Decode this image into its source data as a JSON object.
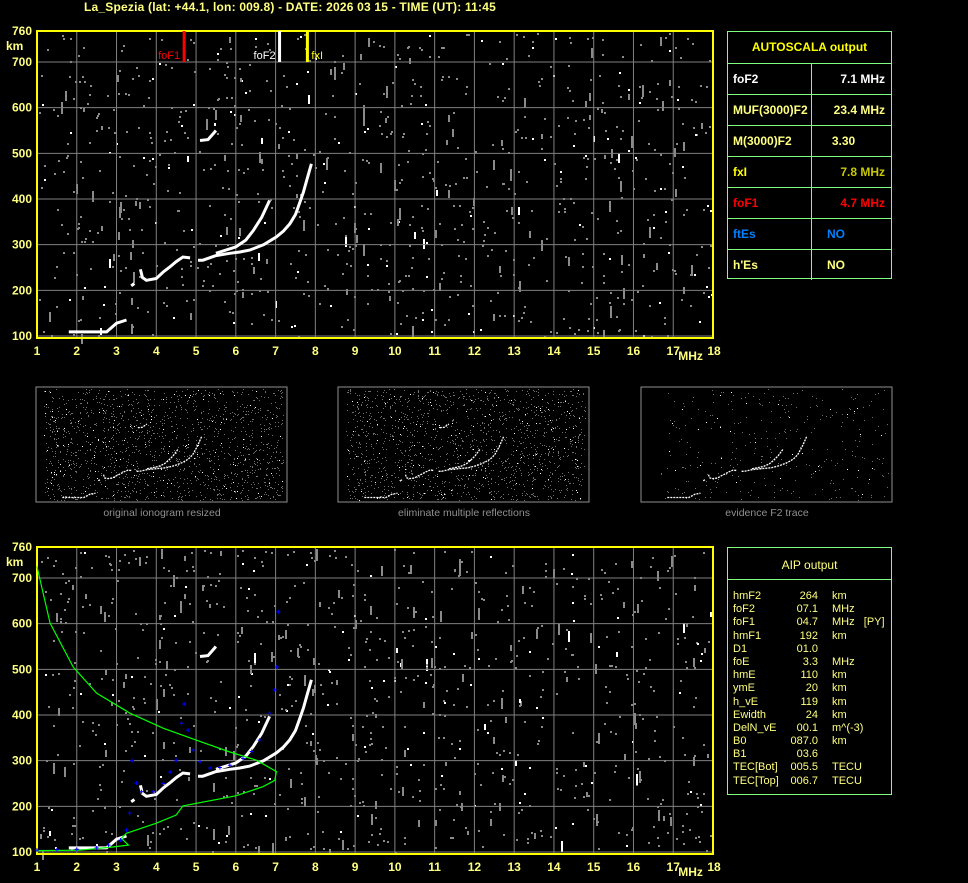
{
  "title": "La_Spezia (lat: +44.1, lon: 009.8) - DATE: 2026 03 15 - TIME (UT): 11:45",
  "autoscala": {
    "header": "AUTOSCALA output",
    "rows": [
      {
        "label": "foF2",
        "value": "7.1 MHz",
        "color": "#ffffff",
        "label_color": "#ffffff",
        "align": "right"
      },
      {
        "label": "MUF(3000)F2",
        "value": "23.4 MHz",
        "color": "#ffff80",
        "label_color": "#ffff80",
        "align": "right"
      },
      {
        "label": "M(3000)F2",
        "value": "3.30",
        "color": "#ffff80",
        "label_color": "#ffff80",
        "align": "center"
      },
      {
        "label": "fxI",
        "value": "7.8 MHz",
        "color": "#c8c800",
        "label_color": "#ffff00",
        "align": "right"
      },
      {
        "label": "foF1",
        "value": "4.7 MHz",
        "color": "#ff0000",
        "label_color": "#ff0000",
        "align": "right"
      },
      {
        "label": "ftEs",
        "value": "NO",
        "color": "#0080ff",
        "label_color": "#0080ff",
        "align": "left"
      },
      {
        "label": "h'Es",
        "value": "NO",
        "color": "#ffff80",
        "label_color": "#ffff80",
        "align": "left"
      }
    ]
  },
  "aip": {
    "header": "AIP output",
    "rows": [
      [
        "hmF2",
        "264",
        "km"
      ],
      [
        "foF2",
        "07.1",
        "MHz"
      ],
      [
        "foF1",
        "04.7",
        "MHz   [PY]"
      ],
      [
        "hmF1",
        "192",
        "km"
      ],
      [
        "D1",
        "01.0",
        ""
      ],
      [
        "foE",
        "3.3",
        "MHz"
      ],
      [
        "hmE",
        "110",
        "km"
      ],
      [
        "ymE",
        "20",
        "km"
      ],
      [
        "h_vE",
        "119",
        "km"
      ],
      [
        "Ewidth",
        "24",
        "km"
      ],
      [
        "DelN_vE",
        "00.1",
        "m^(-3)"
      ],
      [
        "B0",
        "087.0",
        "km"
      ],
      [
        "B1",
        "03.6",
        ""
      ],
      [
        "TEC[Bot]",
        "005.5",
        "TECU"
      ],
      [
        "TEC[Top]",
        "006.7",
        "TECU"
      ]
    ]
  },
  "thumbnails": [
    {
      "caption": "original ionogram resized"
    },
    {
      "caption": "eliminate multiple reflections"
    },
    {
      "caption": "evidence F2 trace"
    }
  ],
  "colors": {
    "axis": "#ffff00",
    "grid": "#808080",
    "label": "#ffff80",
    "table_border": "#80ff80",
    "profile": "#00ff00",
    "fit": "#0000ff",
    "echo": "#ffffff"
  },
  "chart_data": [
    {
      "type": "scatter",
      "name_on_chart": "",
      "xlabel": "MHz",
      "ylabel": "km",
      "xlim": [
        1,
        18
      ],
      "ylim": [
        100,
        760
      ],
      "x_ticks": [
        "1",
        "2",
        "3",
        "4",
        "5",
        "6",
        "7",
        "8",
        "9",
        "10",
        "11",
        "12",
        "13",
        "14",
        "15",
        "16",
        "17",
        "18"
      ],
      "y_ticks": [
        "100",
        "200",
        "300",
        "400",
        "500",
        "600",
        "700",
        "760"
      ],
      "grid": true,
      "markers": [
        {
          "label": "foF1",
          "freq": 4.7,
          "color": "#ff0000"
        },
        {
          "label": "foF2",
          "freq": 7.1,
          "color": "#ffffff"
        },
        {
          "label": "fxI",
          "freq": 7.8,
          "color": "#ffff00"
        }
      ],
      "echo_traces": [
        {
          "points": [
            [
              1.8,
              109
            ],
            [
              2.3,
              109
            ],
            [
              2.75,
              109
            ],
            [
              3.0,
              128
            ],
            [
              3.25,
              135
            ]
          ]
        },
        {
          "points": [
            [
              3.37,
              210
            ],
            [
              3.45,
              215
            ]
          ]
        },
        {
          "points": [
            [
              3.6,
              246
            ],
            [
              3.65,
              228
            ],
            [
              3.75,
              222
            ],
            [
              4.0,
              226
            ],
            [
              4.17,
              240
            ],
            [
              4.34,
              251
            ],
            [
              4.5,
              263
            ],
            [
              4.67,
              273
            ],
            [
              4.85,
              271
            ]
          ]
        },
        {
          "points": [
            [
              5.05,
              266
            ],
            [
              5.17,
              266
            ],
            [
              5.5,
              276
            ],
            [
              5.85,
              281
            ],
            [
              6.1,
              284
            ],
            [
              6.35,
              288
            ],
            [
              6.7,
              300
            ],
            [
              7.02,
              317
            ],
            [
              7.2,
              330
            ],
            [
              7.36,
              346
            ],
            [
              7.5,
              366
            ],
            [
              7.6,
              390
            ],
            [
              7.7,
              415
            ],
            [
              7.78,
              440
            ],
            [
              7.9,
              477
            ]
          ]
        },
        {
          "points": [
            [
              5.5,
              281
            ],
            [
              6.0,
              295
            ],
            [
              6.25,
              310
            ],
            [
              6.44,
              331
            ],
            [
              6.65,
              360
            ],
            [
              6.85,
              397
            ]
          ]
        },
        {
          "points": [
            [
              5.1,
              528
            ],
            [
              5.3,
              530
            ],
            [
              5.45,
              545
            ],
            [
              5.5,
              550
            ]
          ]
        }
      ]
    },
    {
      "type": "line",
      "xlabel": "MHz",
      "ylabel": "km",
      "xlim": [
        1,
        18
      ],
      "ylim": [
        100,
        760
      ],
      "grid": true,
      "profile": [
        [
          1.0,
          725
        ],
        [
          1.33,
          601
        ],
        [
          1.91,
          505
        ],
        [
          2.5,
          448
        ],
        [
          3.34,
          404
        ],
        [
          4.17,
          371
        ],
        [
          5.0,
          345
        ],
        [
          5.85,
          319
        ],
        [
          6.52,
          301
        ],
        [
          7.02,
          276
        ],
        [
          6.98,
          257
        ],
        [
          6.68,
          243
        ],
        [
          6.0,
          223
        ],
        [
          4.67,
          201
        ],
        [
          4.5,
          181
        ],
        [
          4.0,
          163
        ],
        [
          3.25,
          141
        ],
        [
          3.12,
          130
        ],
        [
          3.3,
          115
        ],
        [
          2.9,
          111
        ],
        [
          2.08,
          104
        ],
        [
          1.0,
          103
        ]
      ],
      "fit": [
        [
          1.0,
          104
        ],
        [
          1.5,
          105
        ],
        [
          2.0,
          106
        ],
        [
          2.5,
          109
        ],
        [
          2.8,
          115
        ],
        [
          3.1,
          126
        ],
        [
          3.25,
          148
        ],
        [
          3.33,
          185
        ],
        [
          3.39,
          300
        ],
        [
          3.5,
          251
        ],
        [
          3.63,
          232
        ],
        [
          3.92,
          232
        ],
        [
          4.17,
          250
        ],
        [
          4.35,
          275
        ],
        [
          4.5,
          301
        ],
        [
          4.63,
          382
        ],
        [
          4.7,
          424
        ],
        [
          4.8,
          367
        ],
        [
          4.93,
          323
        ],
        [
          5.1,
          298
        ],
        [
          5.35,
          284
        ],
        [
          5.6,
          285
        ],
        [
          5.85,
          290
        ],
        [
          6.18,
          305
        ],
        [
          6.4,
          320
        ],
        [
          6.6,
          345
        ],
        [
          6.85,
          404
        ],
        [
          6.98,
          455
        ],
        [
          7.03,
          505
        ],
        [
          7.07,
          626
        ]
      ]
    }
  ]
}
